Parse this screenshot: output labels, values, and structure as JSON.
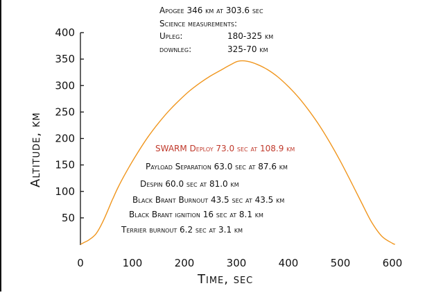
{
  "chart_data": {
    "type": "line",
    "title": "",
    "xlabel": "Time, sec",
    "ylabel": "Altitude, km",
    "xlim": [
      0,
      600
    ],
    "ylim": [
      0,
      400
    ],
    "x_ticks": [
      0,
      100,
      200,
      300,
      400,
      500,
      600
    ],
    "y_ticks": [
      50,
      100,
      150,
      200,
      250,
      300,
      350,
      400
    ],
    "x_tick_labels": [
      "0",
      "100",
      "200",
      "300",
      "400",
      "500",
      "600"
    ],
    "y_tick_labels": [
      "50",
      "100",
      "150",
      "200",
      "250",
      "300",
      "350",
      "400"
    ],
    "grid": false,
    "series": [
      {
        "color": "#f0961e",
        "x": [
          0,
          6.2,
          16,
          30,
          43.5,
          60,
          63,
          73,
          90,
          110,
          130,
          150,
          170,
          190,
          210,
          230,
          250,
          270,
          290,
          303.6,
          320,
          340,
          360,
          380,
          400,
          420,
          440,
          460,
          480,
          500,
          520,
          540,
          560,
          580,
          600,
          605
        ],
        "y": [
          0,
          3.1,
          8.1,
          20,
          43.5,
          81,
          87.6,
          108.9,
          140,
          173,
          203,
          229,
          252,
          272,
          290,
          305,
          318,
          329,
          340,
          346,
          346,
          340,
          330,
          316,
          298,
          277,
          252,
          224,
          192,
          157,
          119,
          80,
          42,
          15,
          2,
          0
        ]
      }
    ],
    "summary": {
      "line1": "Apogee 346 km at 303.6 sec",
      "line2": "Science measurements:",
      "upleg_label": "Upleg:",
      "upleg_value": "180-325 km",
      "downleg_label": "downleg:",
      "downleg_value": "325-70 km"
    },
    "events": [
      {
        "text": "SWARM Deploy 73.0 sec at 108.9 km",
        "highlight": true
      },
      {
        "text": "Payload Separation 63.0 sec at 87.6 km",
        "highlight": false
      },
      {
        "text": "Despin 60.0 sec at 81.0 km",
        "highlight": false
      },
      {
        "text": "Black Brant Burnout 43.5 sec at 43.5 km",
        "highlight": false
      },
      {
        "text": "Black Brant ignition 16 sec at 8.1 km",
        "highlight": false
      },
      {
        "text": "Terrier burnout 6.2 sec at 3.1 km",
        "highlight": false
      }
    ],
    "colors": {
      "line": "#f0961e",
      "highlight": "#c0392b",
      "text": "#111111"
    }
  }
}
